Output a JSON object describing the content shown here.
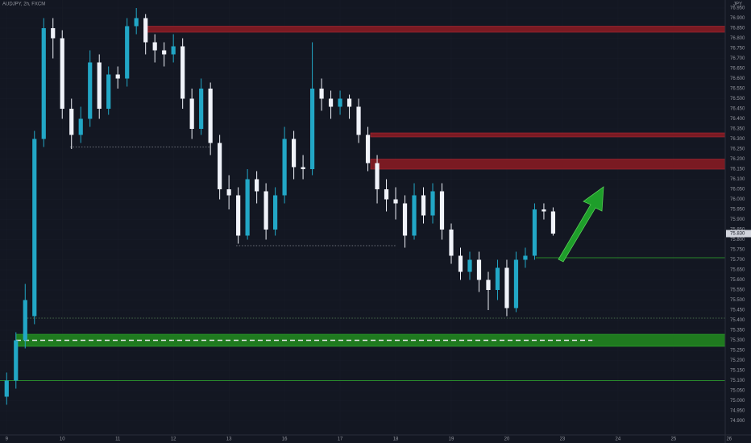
{
  "chart_data": {
    "type": "candlestick",
    "title": "AUDJPY, 2h, FXCM",
    "y_axis_label": "JPY",
    "last_price_label": "75.830",
    "up_color": "#22a7c6",
    "down_color": "#f0f3fa",
    "grid": true,
    "x": [
      0,
      0.1667,
      0.3333,
      0.5,
      0.6667,
      0.8333,
      1,
      1.1667,
      1.3333,
      1.5,
      1.6667,
      1.8333,
      2,
      2.1667,
      2.3333,
      2.5,
      2.6667,
      2.8333,
      3,
      3.1667,
      3.3333,
      3.5,
      3.6667,
      3.8333,
      4,
      4.1667,
      4.3333,
      4.5,
      4.6667,
      4.8333,
      5,
      5.1667,
      5.3333,
      5.5,
      5.6667,
      5.8333,
      6,
      6.1667,
      6.3333,
      6.5,
      6.6667,
      6.8333,
      7,
      7.1667,
      7.3333,
      7.5,
      7.6667,
      7.8333,
      8,
      8.1667,
      8.3333,
      8.5,
      8.6667,
      8.8333,
      9,
      9.1667,
      9.3333,
      9.5,
      9.6667,
      9.8333
    ],
    "open": [
      75.02,
      75.1,
      75.3,
      75.42,
      76.3,
      76.85,
      76.8,
      76.45,
      76.32,
      76.4,
      76.68,
      76.45,
      76.62,
      76.6,
      76.86,
      76.9,
      76.78,
      76.74,
      76.72,
      76.76,
      76.5,
      76.35,
      76.55,
      76.28,
      76.05,
      76.02,
      75.82,
      76.1,
      76.04,
      75.85,
      76.02,
      76.3,
      76.16,
      76.15,
      76.55,
      76.5,
      76.46,
      76.5,
      76.46,
      76.32,
      76.18,
      76.05,
      76.0,
      75.98,
      75.82,
      76.02,
      75.92,
      76.04,
      75.85,
      75.72,
      75.64,
      75.7,
      75.6,
      75.55,
      75.66,
      75.46,
      75.7,
      75.72,
      75.95,
      75.94
    ],
    "high": [
      75.14,
      75.34,
      75.58,
      76.34,
      76.9,
      76.9,
      76.84,
      76.5,
      76.46,
      76.74,
      76.72,
      76.66,
      76.66,
      76.9,
      76.95,
      76.92,
      76.82,
      76.78,
      76.82,
      76.8,
      76.55,
      76.6,
      76.58,
      76.32,
      76.12,
      76.06,
      76.15,
      76.14,
      76.08,
      76.06,
      76.36,
      76.34,
      76.22,
      76.78,
      76.6,
      76.54,
      76.54,
      76.52,
      76.5,
      76.36,
      76.22,
      76.1,
      76.06,
      76.02,
      76.08,
      76.06,
      76.08,
      76.08,
      75.88,
      75.76,
      75.74,
      75.74,
      75.64,
      75.7,
      75.7,
      75.74,
      75.76,
      75.98,
      75.98,
      75.96
    ],
    "low": [
      74.98,
      75.06,
      75.26,
      75.38,
      76.26,
      76.7,
      76.4,
      76.25,
      76.28,
      76.36,
      76.4,
      76.42,
      76.55,
      76.56,
      76.82,
      76.72,
      76.68,
      76.66,
      76.68,
      76.45,
      76.3,
      76.32,
      76.22,
      76.0,
      75.95,
      75.78,
      75.8,
      75.98,
      75.8,
      75.82,
      75.98,
      76.1,
      76.1,
      76.12,
      76.44,
      76.4,
      76.42,
      76.4,
      76.28,
      76.14,
      75.98,
      75.94,
      75.9,
      75.76,
      75.8,
      75.88,
      75.88,
      75.8,
      75.68,
      75.6,
      75.6,
      75.54,
      75.45,
      75.5,
      75.42,
      75.44,
      75.66,
      75.7,
      75.9,
      75.82
    ],
    "close": [
      75.1,
      75.3,
      75.5,
      76.3,
      76.85,
      76.8,
      76.45,
      76.32,
      76.4,
      76.68,
      76.45,
      76.62,
      76.6,
      76.86,
      76.9,
      76.78,
      76.74,
      76.72,
      76.76,
      76.5,
      76.35,
      76.55,
      76.28,
      76.05,
      76.02,
      75.82,
      76.1,
      76.04,
      75.85,
      76.02,
      76.3,
      76.16,
      76.15,
      76.55,
      76.5,
      76.46,
      76.5,
      76.46,
      76.32,
      76.18,
      76.05,
      76.0,
      75.98,
      75.82,
      76.02,
      75.92,
      76.04,
      75.85,
      75.72,
      75.64,
      75.7,
      75.6,
      75.55,
      75.66,
      75.46,
      75.7,
      75.72,
      75.95,
      75.94,
      75.83
    ],
    "xlim": [
      -0.12,
      12.93
    ],
    "ylim": [
      74.83,
      76.99
    ],
    "xticks": [
      {
        "value": 0,
        "label": "9"
      },
      {
        "value": 1,
        "label": "10"
      },
      {
        "value": 2,
        "label": "11"
      },
      {
        "value": 3,
        "label": "12"
      },
      {
        "value": 4,
        "label": "13"
      },
      {
        "value": 5,
        "label": "16"
      },
      {
        "value": 6,
        "label": "17"
      },
      {
        "value": 7,
        "label": "18"
      },
      {
        "value": 8,
        "label": "19"
      },
      {
        "value": 9,
        "label": "20"
      },
      {
        "value": 10,
        "label": "23"
      },
      {
        "value": 11,
        "label": "24"
      },
      {
        "value": 12,
        "label": "25"
      },
      {
        "value": 13,
        "label": "26"
      }
    ],
    "yticks": [
      {
        "value": 74.9,
        "label": "74.900"
      },
      {
        "value": 74.95,
        "label": "74.950"
      },
      {
        "value": 75,
        "label": "75.000"
      },
      {
        "value": 75.05,
        "label": "75.050"
      },
      {
        "value": 75.1,
        "label": "75.100"
      },
      {
        "value": 75.15,
        "label": "75.150"
      },
      {
        "value": 75.2,
        "label": "75.200"
      },
      {
        "value": 75.25,
        "label": "75.250"
      },
      {
        "value": 75.3,
        "label": "75.300"
      },
      {
        "value": 75.35,
        "label": "75.350"
      },
      {
        "value": 75.4,
        "label": "75.400"
      },
      {
        "value": 75.45,
        "label": "75.450"
      },
      {
        "value": 75.5,
        "label": "75.500"
      },
      {
        "value": 75.55,
        "label": "75.550"
      },
      {
        "value": 75.6,
        "label": "75.600"
      },
      {
        "value": 75.65,
        "label": "75.650"
      },
      {
        "value": 75.7,
        "label": "75.700"
      },
      {
        "value": 75.75,
        "label": "75.750"
      },
      {
        "value": 75.8,
        "label": "75.800"
      },
      {
        "value": 75.85,
        "label": "75.850"
      },
      {
        "value": 75.9,
        "label": "75.900"
      },
      {
        "value": 75.95,
        "label": "75.950"
      },
      {
        "value": 76,
        "label": "76.000"
      },
      {
        "value": 76.05,
        "label": "76.050"
      },
      {
        "value": 76.1,
        "label": "76.100"
      },
      {
        "value": 76.15,
        "label": "76.150"
      },
      {
        "value": 76.2,
        "label": "76.200"
      },
      {
        "value": 76.25,
        "label": "76.250"
      },
      {
        "value": 76.3,
        "label": "76.300"
      },
      {
        "value": 76.35,
        "label": "76.350"
      },
      {
        "value": 76.4,
        "label": "76.400"
      },
      {
        "value": 76.45,
        "label": "76.450"
      },
      {
        "value": 76.5,
        "label": "76.500"
      },
      {
        "value": 76.55,
        "label": "76.550"
      },
      {
        "value": 76.6,
        "label": "76.600"
      },
      {
        "value": 76.65,
        "label": "76.650"
      },
      {
        "value": 76.7,
        "label": "76.700"
      },
      {
        "value": 76.75,
        "label": "76.750"
      },
      {
        "value": 76.8,
        "label": "76.800"
      },
      {
        "value": 76.85,
        "label": "76.850"
      },
      {
        "value": 76.9,
        "label": "76.900"
      },
      {
        "value": 76.95,
        "label": "76.950"
      }
    ],
    "zones": [
      {
        "from": 2.49,
        "low": 76.83,
        "high": 76.86,
        "color": "#7a1a22"
      },
      {
        "from": 6.55,
        "low": 76.31,
        "high": 76.33,
        "color": "#7a1a22"
      },
      {
        "from": 6.55,
        "low": 76.15,
        "high": 76.2,
        "color": "#7a1a22"
      },
      {
        "from": 0.17,
        "low": 75.27,
        "high": 75.33,
        "color": "#1f7a1f"
      }
    ],
    "levels": [
      {
        "from": 0.17,
        "to": 10.54,
        "value": 75.3,
        "color": "#e8e8e8",
        "style": "dashed"
      },
      {
        "from": 9.52,
        "value": 75.71,
        "color": "#2fae2f",
        "style": "solid"
      },
      {
        "from": -0.12,
        "value": 75.1,
        "color": "#2fae2f",
        "style": "solid"
      },
      {
        "from": 1.14,
        "to": 3.68,
        "value": 76.26,
        "color": "#8a8e99",
        "style": "dotted"
      },
      {
        "from": 4.13,
        "to": 7.01,
        "value": 75.77,
        "color": "#8a8e99",
        "style": "dotted"
      },
      {
        "from": 0.32,
        "value": 75.41,
        "color": "#5c8a5c",
        "style": "dotted"
      }
    ]
  }
}
